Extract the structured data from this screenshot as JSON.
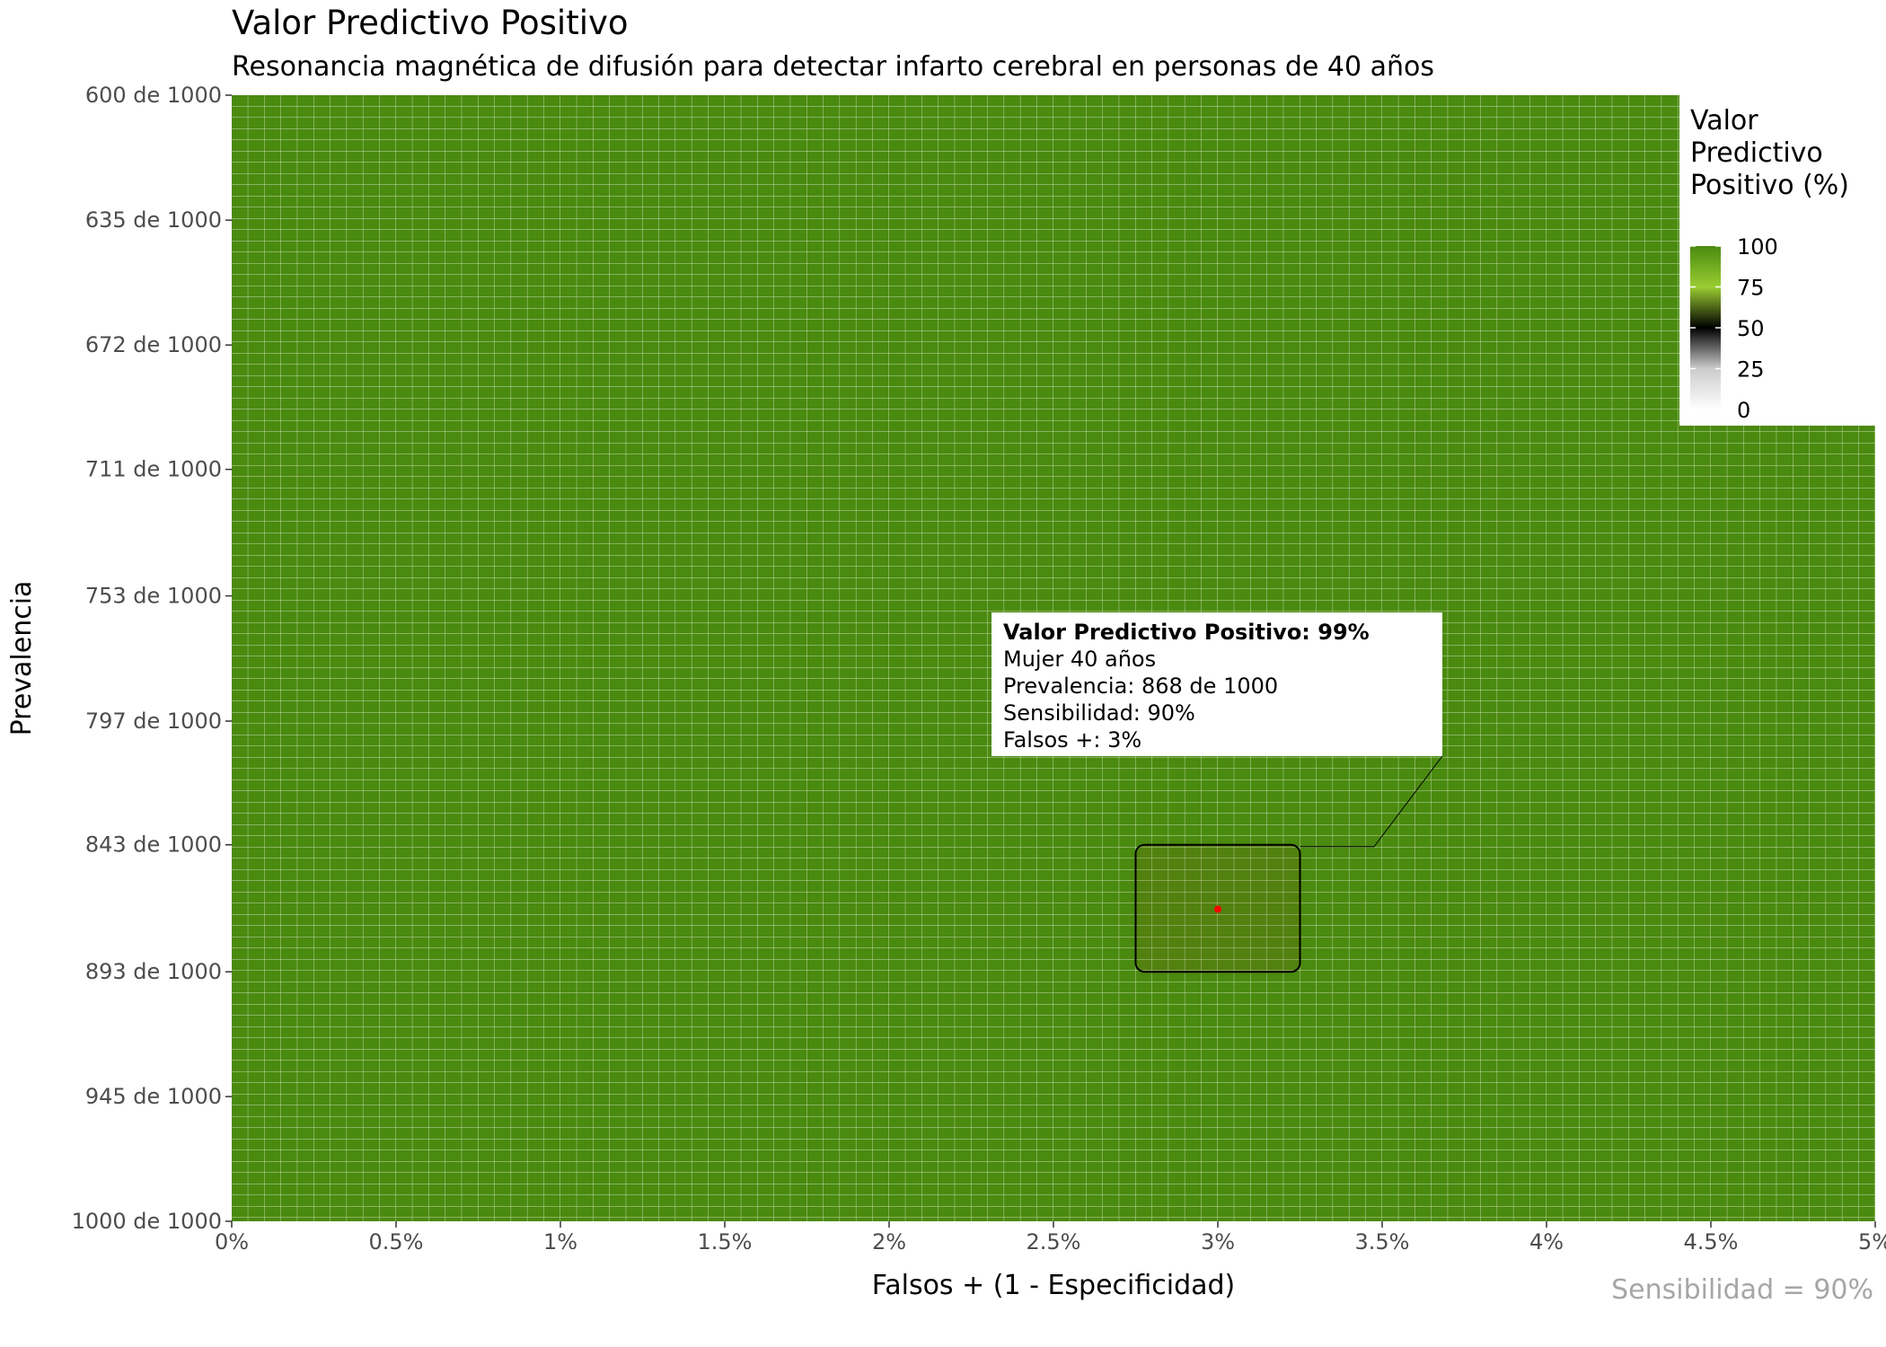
{
  "chart_data": {
    "type": "heatmap",
    "title": "Valor Predictivo Positivo",
    "subtitle": "Resonancia magnética de difusión para detectar infarto cerebral en personas de 40 años",
    "xlabel": "Falsos + (1 - Especificidad)",
    "ylabel": "Prevalencia",
    "caption": "Sensibilidad = 90%",
    "x_ticks": [
      "0%",
      "0.5%",
      "1%",
      "1.5%",
      "2%",
      "2.5%",
      "3%",
      "3.5%",
      "4%",
      "4.5%",
      "5%"
    ],
    "x_tick_values": [
      0,
      0.5,
      1,
      1.5,
      2,
      2.5,
      3,
      3.5,
      4,
      4.5,
      5
    ],
    "xlim": [
      0,
      5
    ],
    "y_ticks": [
      "600 de 1000",
      "635 de 1000",
      "672 de 1000",
      "711 de 1000",
      "753 de 1000",
      "797 de 1000",
      "843 de 1000",
      "893 de 1000",
      "945 de 1000",
      "1000 de 1000"
    ],
    "y_tick_values": [
      600,
      635,
      672,
      711,
      753,
      797,
      843,
      893,
      945,
      1000
    ],
    "ylim": [
      600,
      1000
    ],
    "y_scale": "log",
    "grid_columns": 100,
    "grid_rows": 100,
    "fill_value_range": [
      98,
      100
    ],
    "fill_color": "#4a8a0f",
    "cell_border_color": "#c8dcb4",
    "legend": {
      "title": "Valor\nPredictivo\nPositivo (%)",
      "ticks": [
        "100",
        "75",
        "50",
        "25",
        "0"
      ],
      "tick_values": [
        100,
        75,
        50,
        25,
        0
      ],
      "placement": "top-right (inside)",
      "colors": [
        "#ffffff",
        "#cccccc",
        "#000000",
        "#9acd32",
        "#4a8a0f"
      ]
    },
    "annotation": {
      "lines": [
        "Valor Predictivo Positivo: 99%",
        "Mujer 40 años",
        "Prevalencia: 868 de 1000",
        "Sensibilidad: 90%",
        "Falsos +: 3%"
      ],
      "point": {
        "x": 3,
        "y": 868,
        "color": "#ff0000"
      },
      "highlight_x_range": [
        2.75,
        3.25
      ],
      "highlight_y_range": [
        843,
        893
      ]
    }
  }
}
